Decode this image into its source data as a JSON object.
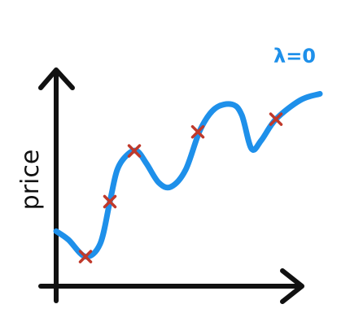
{
  "chart_data": {
    "type": "scatter",
    "title": "",
    "xlabel": "",
    "ylabel": "price",
    "curve_label": "λ=0",
    "grid": false,
    "axis_ticks": false,
    "xlim": [
      0,
      100
    ],
    "ylim": [
      0,
      100
    ],
    "series": [
      {
        "kind": "points",
        "marker": "x",
        "points": [
          {
            "x": 12,
            "y": 14
          },
          {
            "x": 22,
            "y": 40
          },
          {
            "x": 32,
            "y": 64
          },
          {
            "x": 58,
            "y": 73
          },
          {
            "x": 90,
            "y": 79
          }
        ]
      },
      {
        "kind": "curve",
        "points": [
          {
            "x": 0,
            "y": 26
          },
          {
            "x": 5,
            "y": 22
          },
          {
            "x": 12,
            "y": 14
          },
          {
            "x": 18,
            "y": 20
          },
          {
            "x": 22,
            "y": 40
          },
          {
            "x": 25,
            "y": 55
          },
          {
            "x": 29,
            "y": 62
          },
          {
            "x": 33,
            "y": 64
          },
          {
            "x": 37,
            "y": 58
          },
          {
            "x": 42,
            "y": 49
          },
          {
            "x": 47,
            "y": 47
          },
          {
            "x": 53,
            "y": 55
          },
          {
            "x": 59,
            "y": 74
          },
          {
            "x": 65,
            "y": 84
          },
          {
            "x": 72,
            "y": 86
          },
          {
            "x": 76,
            "y": 81
          },
          {
            "x": 80,
            "y": 65
          },
          {
            "x": 84,
            "y": 69
          },
          {
            "x": 90,
            "y": 79
          },
          {
            "x": 100,
            "y": 88
          },
          {
            "x": 108,
            "y": 91
          }
        ]
      }
    ]
  },
  "colors": {
    "axes": "#111111",
    "curve": "#1e90ea",
    "markers": "#c0392b",
    "background": "#ffffff"
  }
}
